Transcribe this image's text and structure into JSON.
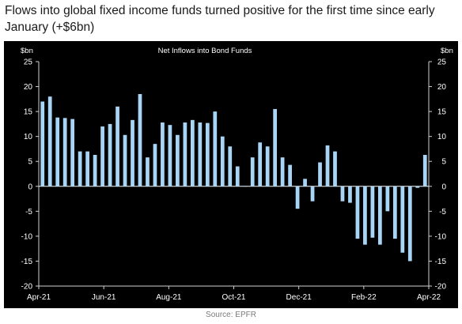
{
  "headline": "Flows into global fixed income funds turned positive for the first time since early January (+$6bn)",
  "source": "Source: EPFR",
  "chart_data": {
    "type": "bar",
    "title": "Net Inflows  into Bond Funds",
    "ylabel_left": "$bn",
    "ylabel_right": "$bn",
    "ylim": [
      -20,
      25
    ],
    "yticks": [
      25,
      20,
      15,
      10,
      5,
      0,
      -5,
      -10,
      -15,
      -20
    ],
    "xticks": [
      "Apr-21",
      "Jun-21",
      "Aug-21",
      "Oct-21",
      "Dec-21",
      "Feb-22",
      "Apr-22"
    ],
    "grid": false,
    "bar_color": "#a8d4f5",
    "values": [
      17.0,
      18.0,
      13.8,
      13.7,
      13.5,
      7.0,
      7.0,
      6.3,
      12.0,
      12.5,
      16.0,
      10.3,
      13.3,
      18.5,
      5.8,
      8.5,
      12.8,
      12.3,
      10.3,
      12.8,
      13.3,
      12.8,
      12.7,
      15.0,
      10.0,
      8.0,
      4.0,
      0.1,
      5.8,
      8.8,
      8.0,
      15.5,
      5.8,
      4.3,
      -4.5,
      1.5,
      -3.0,
      4.8,
      8.2,
      7.0,
      -3.0,
      -3.3,
      -10.5,
      -11.7,
      -10.3,
      -11.7,
      -5.0,
      -10.5,
      -13.3,
      -15.0,
      -0.3,
      6.3
    ]
  }
}
